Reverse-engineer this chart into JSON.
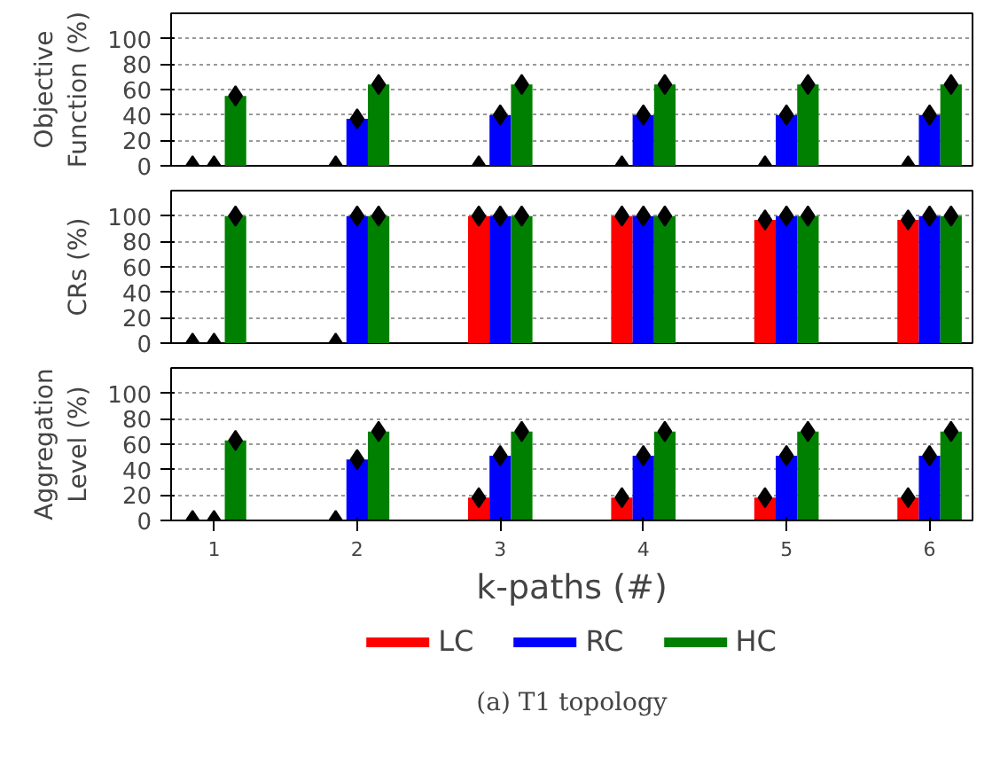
{
  "chart_data": [
    {
      "type": "bar",
      "ylabel": "Objective Function (%)",
      "categories": [
        "1",
        "2",
        "3",
        "4",
        "5",
        "6"
      ],
      "ylim": [
        0,
        120
      ],
      "yticks": [
        0,
        20,
        40,
        60,
        80,
        100
      ],
      "grid": "y",
      "tick_labels": "y",
      "legend": false,
      "series": [
        {
          "color": "#ff0000",
          "values": [
            0,
            0,
            0,
            0,
            0,
            0
          ]
        },
        {
          "color": "#0000ff",
          "values": [
            0,
            37,
            40,
            40,
            40,
            40
          ]
        },
        {
          "color": "#008000",
          "values": [
            55,
            64,
            64,
            64,
            64,
            64
          ]
        },
        {
          "type": "scatter",
          "marker": "diamond",
          "color": "#000000",
          "x": [
            "1",
            "1",
            "1",
            "2",
            "2",
            "2",
            "3",
            "3",
            "3",
            "4",
            "4",
            "4",
            "5",
            "5",
            "5",
            "6",
            "6",
            "6"
          ],
          "values": [
            0,
            0,
            55,
            0,
            37,
            64,
            0,
            40,
            64,
            0,
            40,
            64,
            0,
            40,
            64,
            0,
            40,
            64
          ]
        }
      ]
    },
    {
      "type": "bar",
      "ylabel": "CRs (%)",
      "categories": [
        "1",
        "2",
        "3",
        "4",
        "5",
        "6"
      ],
      "ylim": [
        0,
        120
      ],
      "yticks": [
        0,
        20,
        40,
        60,
        80,
        100
      ],
      "grid": "y",
      "tick_labels": "y",
      "legend": false,
      "series": [
        {
          "color": "#ff0000",
          "values": [
            0,
            0,
            100,
            100,
            97,
            97
          ]
        },
        {
          "color": "#0000ff",
          "values": [
            0,
            100,
            100,
            100,
            100,
            100
          ]
        },
        {
          "color": "#008000",
          "values": [
            100,
            100,
            100,
            100,
            100,
            100
          ]
        },
        {
          "type": "scatter",
          "marker": "diamond",
          "color": "#000000",
          "x": [
            "1",
            "1",
            "1",
            "2",
            "2",
            "2",
            "3",
            "3",
            "3",
            "4",
            "4",
            "4",
            "5",
            "5",
            "5",
            "6",
            "6",
            "6"
          ],
          "values": [
            0,
            0,
            100,
            0,
            100,
            100,
            100,
            100,
            100,
            100,
            100,
            100,
            97,
            100,
            100,
            97,
            100,
            100
          ]
        }
      ]
    },
    {
      "type": "bar",
      "ylabel": "Aggregation Level (%)",
      "xlabel": "k-paths (#)",
      "categories": [
        "1",
        "2",
        "3",
        "4",
        "5",
        "6"
      ],
      "ylim": [
        0,
        120
      ],
      "yticks": [
        0,
        20,
        40,
        60,
        80,
        100
      ],
      "grid": "y",
      "legend": "bottom",
      "annotations": [
        "(a) T1 topology"
      ],
      "series": [
        {
          "name": "LC",
          "color": "#ff0000",
          "values": [
            0,
            0,
            18,
            18,
            18,
            18
          ]
        },
        {
          "name": "RC",
          "color": "#0000ff",
          "values": [
            0,
            48,
            51,
            51,
            51,
            51
          ]
        },
        {
          "name": "HC",
          "color": "#008000",
          "values": [
            63,
            70,
            70,
            70,
            70,
            70
          ]
        },
        {
          "type": "scatter",
          "marker": "diamond",
          "color": "#000000",
          "x": [
            "1",
            "1",
            "1",
            "2",
            "2",
            "2",
            "3",
            "3",
            "3",
            "4",
            "4",
            "4",
            "5",
            "5",
            "5",
            "6",
            "6",
            "6"
          ],
          "values": [
            0,
            0,
            63,
            0,
            48,
            70,
            18,
            51,
            70,
            18,
            51,
            70,
            18,
            51,
            70,
            18,
            51,
            70
          ]
        }
      ]
    }
  ]
}
